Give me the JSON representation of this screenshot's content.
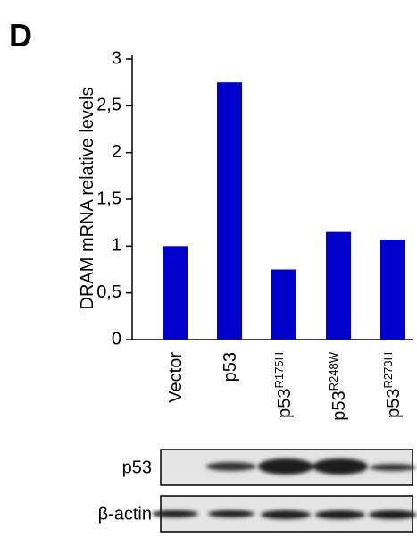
{
  "panel_label": "D",
  "chart_data": {
    "type": "bar",
    "y_label": "DRAM mRNA relative levels",
    "categories": [
      "Vector",
      "p53",
      "p53",
      "p53",
      "p53"
    ],
    "category_superscripts": [
      null,
      null,
      "R175H",
      "R248W",
      "R273H"
    ],
    "values": [
      1.0,
      2.75,
      0.75,
      1.15,
      1.07
    ],
    "color": "#0000cc",
    "ylim": [
      0,
      3
    ],
    "yticks": [
      0,
      {
        "value": 0.5,
        "label": "0,5"
      },
      1,
      {
        "value": 1.5,
        "label": "1,5"
      },
      2,
      {
        "value": 2.5,
        "label": "2,5"
      },
      3
    ]
  },
  "blot": {
    "rows": [
      "p53",
      "β-actin"
    ]
  }
}
